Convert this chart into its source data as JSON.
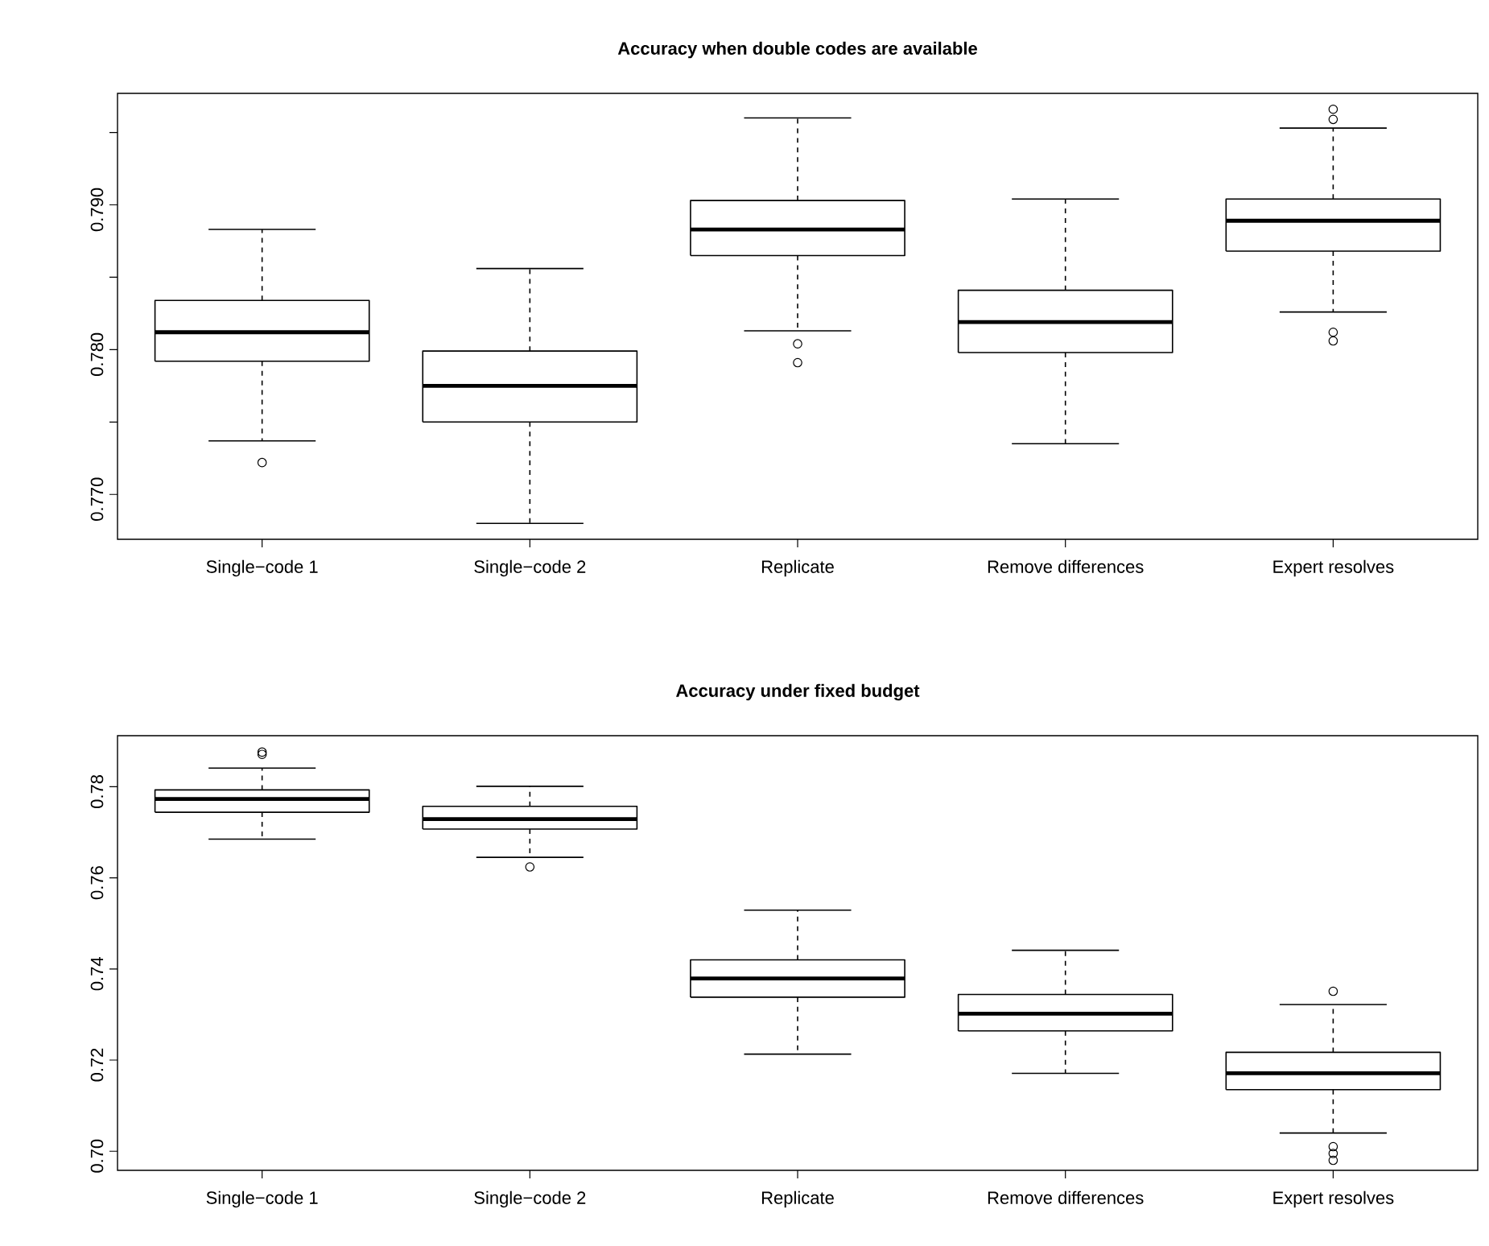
{
  "chart_data": [
    {
      "type": "box",
      "title": "Accuracy when double codes are available",
      "categories": [
        "Single−code 1",
        "Single−code 2",
        "Replicate",
        "Remove differences",
        "Expert resolves"
      ],
      "ylim": [
        0.7669,
        0.7977
      ],
      "yticks": [
        {
          "value": 0.77,
          "label": "0.770"
        },
        {
          "value": 0.775,
          "label": null
        },
        {
          "value": 0.78,
          "label": "0.780"
        },
        {
          "value": 0.785,
          "label": null
        },
        {
          "value": 0.79,
          "label": "0.790"
        },
        {
          "value": 0.795,
          "label": null
        }
      ],
      "boxes": [
        {
          "low": 0.7737,
          "q1": 0.7792,
          "median": 0.7812,
          "q3": 0.7834,
          "high": 0.7883,
          "outliers": [
            0.7722
          ]
        },
        {
          "low": 0.768,
          "q1": 0.775,
          "median": 0.7775,
          "q3": 0.7799,
          "high": 0.7856
        },
        {
          "low": 0.7813,
          "q1": 0.7865,
          "median": 0.7883,
          "q3": 0.7903,
          "high": 0.796,
          "outliers": [
            0.7804,
            0.7791
          ]
        },
        {
          "low": 0.7735,
          "q1": 0.7798,
          "median": 0.7819,
          "q3": 0.7841,
          "high": 0.7904
        },
        {
          "low": 0.7826,
          "q1": 0.7868,
          "median": 0.7889,
          "q3": 0.7904,
          "high": 0.7953,
          "outliers": [
            0.7966,
            0.7959,
            0.7812,
            0.7806
          ]
        }
      ]
    },
    {
      "type": "box",
      "title": "Accuracy under fixed budget",
      "categories": [
        "Single−code 1",
        "Single−code 2",
        "Replicate",
        "Remove differences",
        "Expert resolves"
      ],
      "ylim": [
        0.6958,
        0.7912
      ],
      "yticks": [
        {
          "value": 0.7,
          "label": "0.70"
        },
        {
          "value": 0.72,
          "label": "0.72"
        },
        {
          "value": 0.74,
          "label": "0.74"
        },
        {
          "value": 0.76,
          "label": "0.76"
        },
        {
          "value": 0.78,
          "label": "0.78"
        }
      ],
      "boxes": [
        {
          "low": 0.7685,
          "q1": 0.7744,
          "median": 0.7773,
          "q3": 0.7793,
          "high": 0.7841,
          "outliers": [
            0.7876,
            0.7871
          ]
        },
        {
          "low": 0.7645,
          "q1": 0.7707,
          "median": 0.7729,
          "q3": 0.7757,
          "high": 0.7801,
          "outliers": [
            0.7624
          ]
        },
        {
          "low": 0.7213,
          "q1": 0.7338,
          "median": 0.7379,
          "q3": 0.742,
          "high": 0.7529
        },
        {
          "low": 0.7171,
          "q1": 0.7264,
          "median": 0.7302,
          "q3": 0.7344,
          "high": 0.7441
        },
        {
          "low": 0.704,
          "q1": 0.7135,
          "median": 0.7171,
          "q3": 0.7217,
          "high": 0.7322,
          "outliers": [
            0.7351,
            0.701,
            0.6995,
            0.698
          ]
        }
      ]
    }
  ]
}
